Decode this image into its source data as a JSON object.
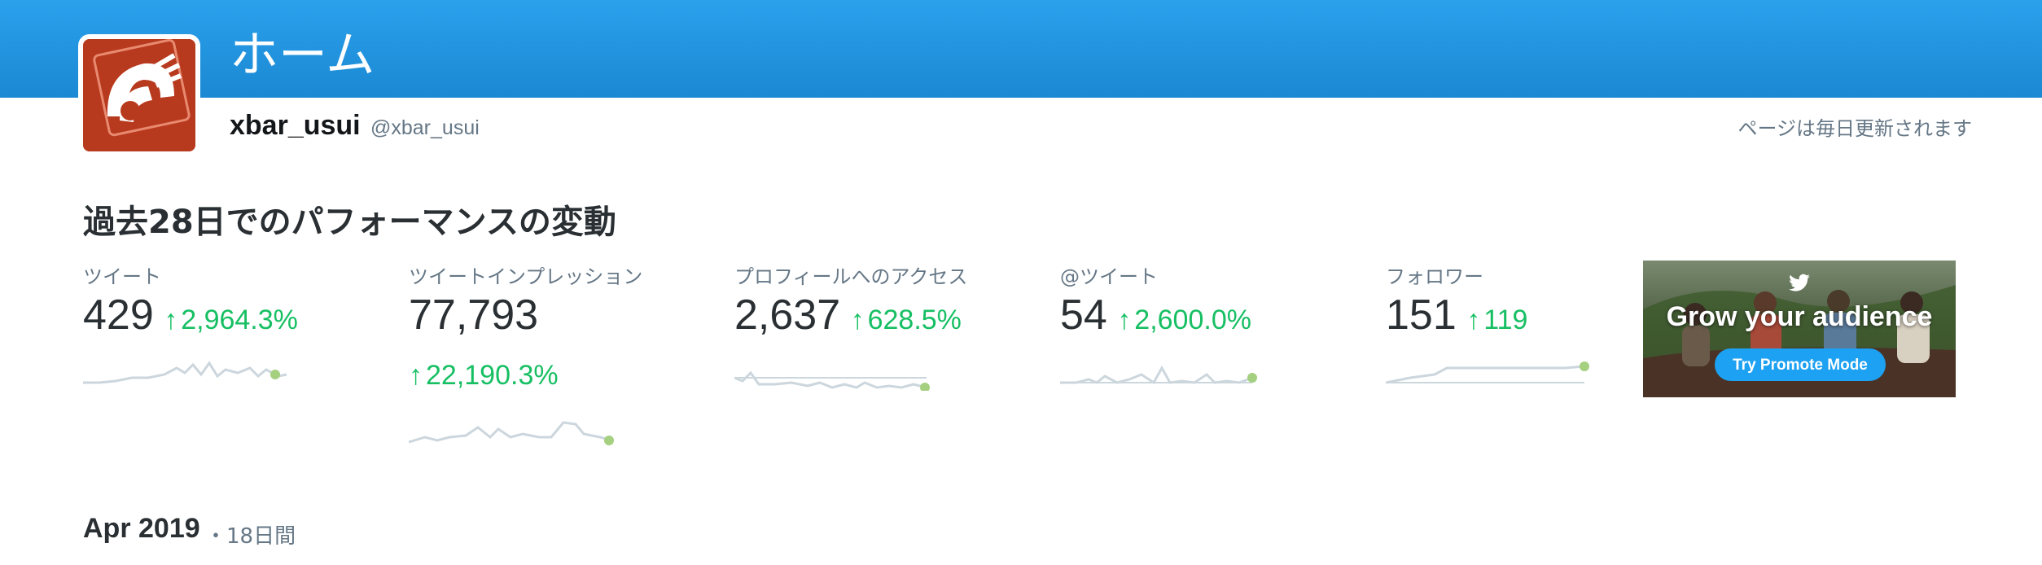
{
  "header": {
    "title": "ホーム"
  },
  "profile": {
    "name": "xbar_usui",
    "handle": "@xbar_usui"
  },
  "update_note": "ページは毎日更新されます",
  "section_title": "過去28日でのパフォーマンスの変動",
  "colors": {
    "header": "#1da1f2",
    "positive": "#17bf63",
    "spark_line": "#ccd6dd",
    "spark_dot": "#a4d07f",
    "avatar": "#b83a1e"
  },
  "metrics": [
    {
      "label": "ツイート",
      "value": "429",
      "change": "2,964.3%"
    },
    {
      "label": "ツイートインプレッション",
      "value": "77,793",
      "change": "22,190.3%"
    },
    {
      "label": "プロフィールへのアクセス",
      "value": "2,637",
      "change": "628.5%"
    },
    {
      "label": "@ツイート",
      "value": "54",
      "change": "2,600.0%"
    },
    {
      "label": "フォロワー",
      "value": "151",
      "change": "119"
    }
  ],
  "promo": {
    "headline": "Grow your audience",
    "button": "Try Promote Mode",
    "icon": "bird-icon"
  },
  "period": {
    "title": "Apr 2019",
    "days": "・18日間"
  }
}
